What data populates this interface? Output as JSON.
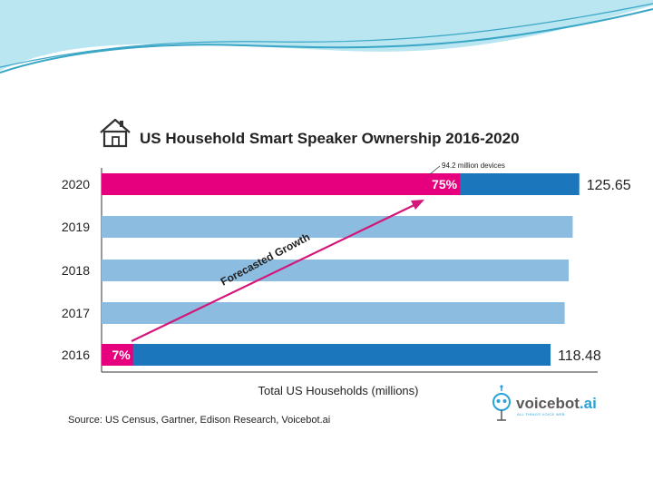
{
  "colors": {
    "pink": "#e6007e",
    "dark_blue": "#1b76bc",
    "light_blue": "#8cbce0",
    "arrow": "#d4157a",
    "wave_dark": "#3aa6c6",
    "wave_light": "#b9e6f1"
  },
  "chart_data": {
    "type": "bar",
    "orientation": "horizontal",
    "title": "US Household Smart Speaker Ownership 2016-2020",
    "xlabel": "Total US Households (millions)",
    "ylabel": "",
    "xlim": [
      0,
      130
    ],
    "categories": [
      "2020",
      "2019",
      "2018",
      "2017",
      "2016"
    ],
    "values": [
      125.65,
      124.0,
      123.0,
      122.0,
      118.48
    ],
    "value_labels": [
      "125.65",
      "",
      "",
      "",
      "118.48"
    ],
    "ownership_share": [
      {
        "category": "2020",
        "percent": 75,
        "label": "75%"
      },
      {
        "category": "2016",
        "percent": 7,
        "label": "7%"
      }
    ],
    "annotations": {
      "devices_note": "94.2 million devices",
      "trend_label": "Forecasted Growth"
    },
    "grid": false
  },
  "source": "Source: US Census, Gartner, Edison Research, Voicebot.ai",
  "logo": {
    "name": "voicebot",
    "suffix": ".ai",
    "tagline": "ALL THINGS VOICE WEB"
  }
}
